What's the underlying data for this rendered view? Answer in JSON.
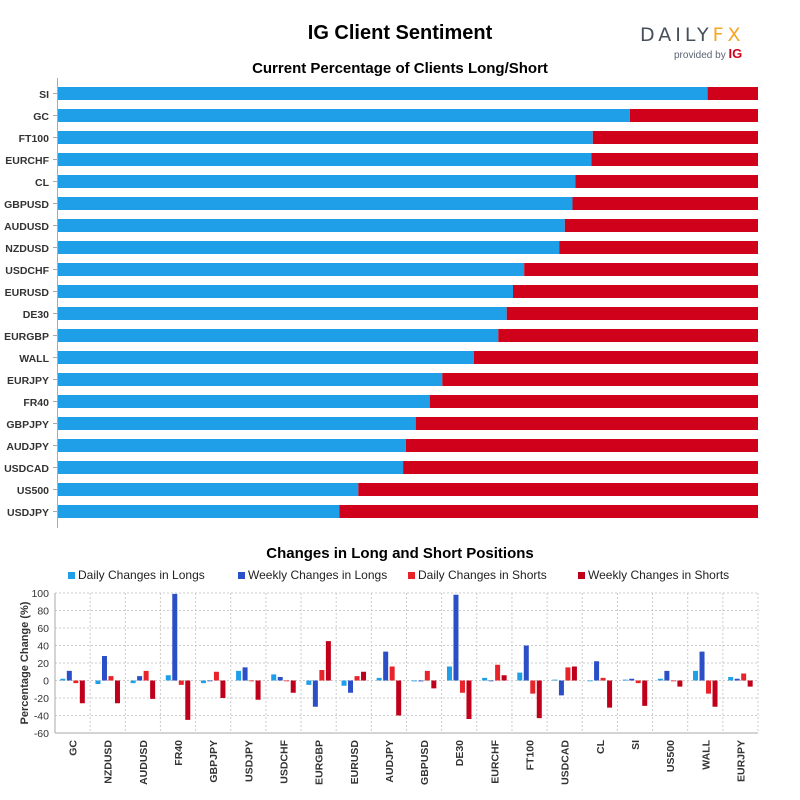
{
  "header": {
    "title": "IG Client Sentiment",
    "logo_text_a": "DAILY",
    "logo_text_b": "FX",
    "provided_by": "provided by",
    "ig": "IG"
  },
  "colors": {
    "long": "#1f9fe8",
    "short": "#d0021b",
    "weekly_long": "#2a4fc7",
    "grid": "#cccccc"
  },
  "chart_data": [
    {
      "type": "bar",
      "orientation": "horizontal",
      "stacked": true,
      "title": "Current Percentage of Clients Long/Short",
      "categories": [
        "SI",
        "GC",
        "FT100",
        "EURCHF",
        "CL",
        "GBPUSD",
        "AUDUSD",
        "NZDUSD",
        "USDCHF",
        "EURUSD",
        "DE30",
        "EURGBP",
        "WALL",
        "EURJPY",
        "FR40",
        "GBPJPY",
        "AUDJPY",
        "USDCAD",
        "US500",
        "USDJPY"
      ],
      "series": [
        {
          "values": [
            92.8,
            81.7,
            76.4,
            76.2,
            73.9,
            73.5,
            72.4,
            71.6,
            66.6,
            65.0,
            64.1,
            62.9,
            59.4,
            54.9,
            53.1,
            51.1,
            49.7,
            49.3,
            42.9,
            40.2
          ]
        },
        {
          "values": [
            7.2,
            18.3,
            23.6,
            23.8,
            26.1,
            26.5,
            27.6,
            28.4,
            33.4,
            35.0,
            35.9,
            37.1,
            40.6,
            45.1,
            46.9,
            48.9,
            50.3,
            50.7,
            57.1,
            59.8
          ]
        }
      ],
      "xlim": [
        0,
        100
      ]
    },
    {
      "type": "bar",
      "title": "Changes in Long and Short Positions",
      "ylabel": "Percentage Change (%)",
      "ylim": [
        -60,
        100
      ],
      "yticks": [
        -60,
        -40,
        -20,
        0,
        20,
        40,
        60,
        80,
        100
      ],
      "grid": true,
      "legend_position": "top",
      "categories": [
        "GC",
        "NZDUSD",
        "AUDUSD",
        "FR40",
        "GBPJPY",
        "USDJPY",
        "USDCHF",
        "EURGBP",
        "EURUSD",
        "AUDJPY",
        "GBPUSD",
        "DE30",
        "EURCHF",
        "FT100",
        "USDCAD",
        "CL",
        "SI",
        "US500",
        "WALL",
        "EURJPY"
      ],
      "series": [
        {
          "name": "Daily Changes in Longs",
          "values": [
            2,
            -4,
            -3,
            6,
            -3,
            11,
            7,
            -5,
            -6,
            3,
            -1,
            16,
            3,
            9,
            1,
            0,
            1,
            2,
            11,
            4
          ]
        },
        {
          "name": "Weekly Changes in Longs",
          "values": [
            11,
            28,
            5,
            99,
            0,
            15,
            4,
            -30,
            -14,
            33,
            -1,
            98,
            0,
            40,
            -17,
            22,
            2,
            11,
            33,
            2
          ]
        },
        {
          "name": "Daily Changes in Shorts",
          "values": [
            -3,
            5,
            11,
            -5,
            10,
            0,
            0,
            12,
            5,
            16,
            11,
            -14,
            18,
            -15,
            15,
            3,
            -3,
            0,
            -15,
            8
          ]
        },
        {
          "name": "Weekly Changes in Shorts",
          "values": [
            -26,
            -26,
            -21,
            -45,
            -20,
            -22,
            -14,
            45,
            10,
            -40,
            -9,
            -44,
            6,
            -43,
            16,
            -31,
            -29,
            -7,
            -30,
            -7
          ]
        }
      ]
    }
  ]
}
